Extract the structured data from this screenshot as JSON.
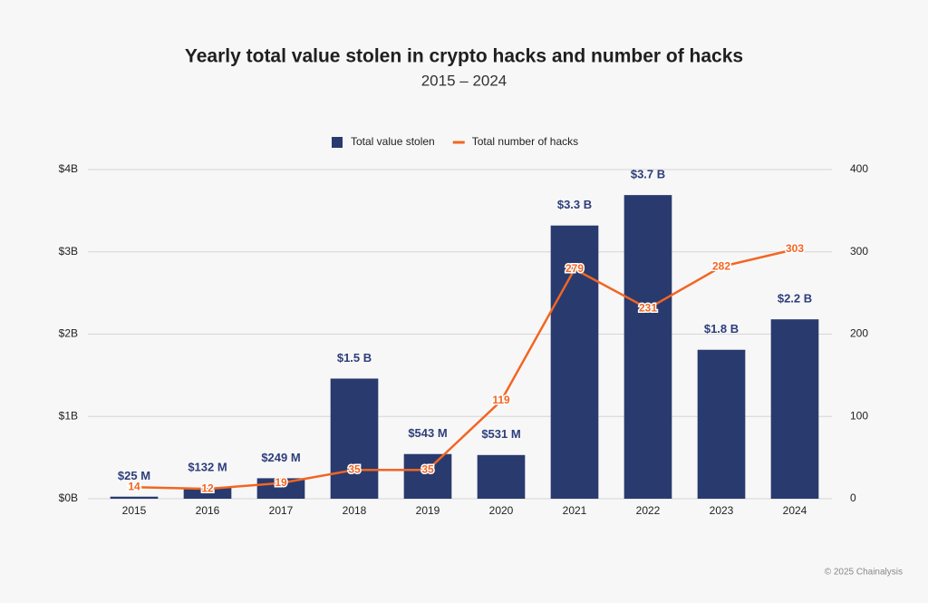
{
  "chart_data": {
    "type": "bar",
    "title": "Yearly total value stolen in crypto hacks and number of hacks",
    "subtitle": "2015 – 2024",
    "categories": [
      "2015",
      "2016",
      "2017",
      "2018",
      "2019",
      "2020",
      "2021",
      "2022",
      "2023",
      "2024"
    ],
    "series": [
      {
        "name": "Total value stolen",
        "type": "bar",
        "color": "#283a6e",
        "values": [
          25000000,
          132000000,
          249000000,
          1460000000,
          543000000,
          531000000,
          3320000000,
          3690000000,
          1810000000,
          2180000000
        ],
        "value_labels": [
          "$25  M",
          "$132  M",
          "$249  M",
          "$1.5 B",
          "$543  M",
          "$531  M",
          "$3.3 B",
          "$3.7 B",
          "$1.8 B",
          "$2.2 B"
        ]
      },
      {
        "name": "Total number of hacks",
        "type": "line",
        "axis": "y2",
        "color": "#f26522",
        "values": [
          14,
          12,
          19,
          35,
          35,
          119,
          279,
          231,
          282,
          303
        ]
      }
    ],
    "ylim": [
      0,
      4000000000
    ],
    "yticks": [
      {
        "value": 0,
        "label": "$0B"
      },
      {
        "value": 1000000000,
        "label": "$1B"
      },
      {
        "value": 2000000000,
        "label": "$2B"
      },
      {
        "value": 3000000000,
        "label": "$3B"
      },
      {
        "value": 4000000000,
        "label": "$4B"
      }
    ],
    "y2lim": [
      0,
      400
    ],
    "y2ticks": [
      0,
      100,
      200,
      300,
      400
    ],
    "grid": true,
    "legend": "top",
    "footer": "© 2025 Chainalysis"
  }
}
